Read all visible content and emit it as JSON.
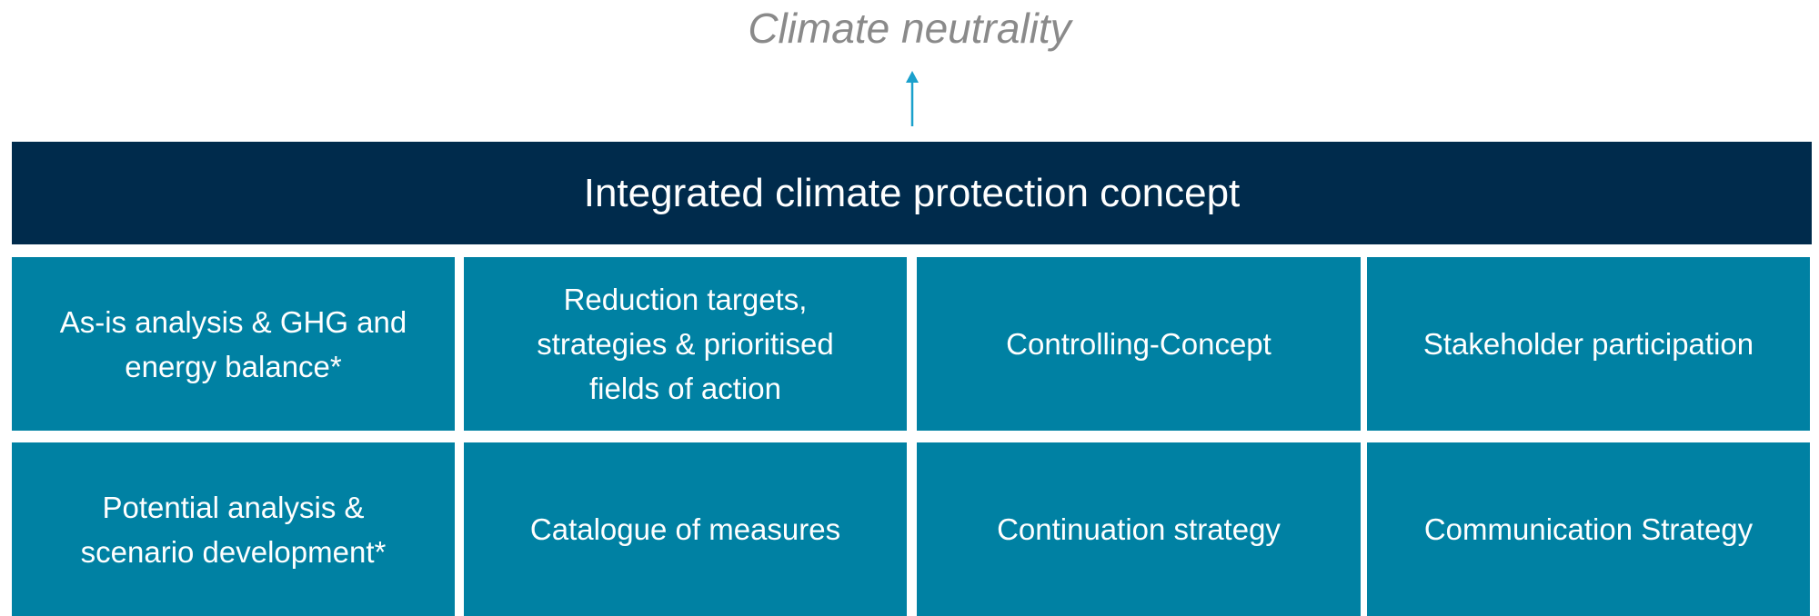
{
  "title": "Climate neutrality",
  "header": "Integrated climate protection concept",
  "rows": [
    [
      {
        "lines": [
          "As-is analysis & GHG and",
          "energy balance*"
        ]
      },
      {
        "lines": [
          "Reduction targets,",
          "strategies & prioritised",
          "fields of action"
        ]
      },
      {
        "lines": [
          "Controlling-Concept"
        ]
      },
      {
        "lines": [
          "Stakeholder participation"
        ]
      }
    ],
    [
      {
        "lines": [
          "Potential analysis &",
          "scenario development*"
        ]
      },
      {
        "lines": [
          "Catalogue of measures"
        ]
      },
      {
        "lines": [
          "Continuation strategy"
        ]
      },
      {
        "lines": [
          "Communication Strategy"
        ]
      }
    ]
  ]
}
